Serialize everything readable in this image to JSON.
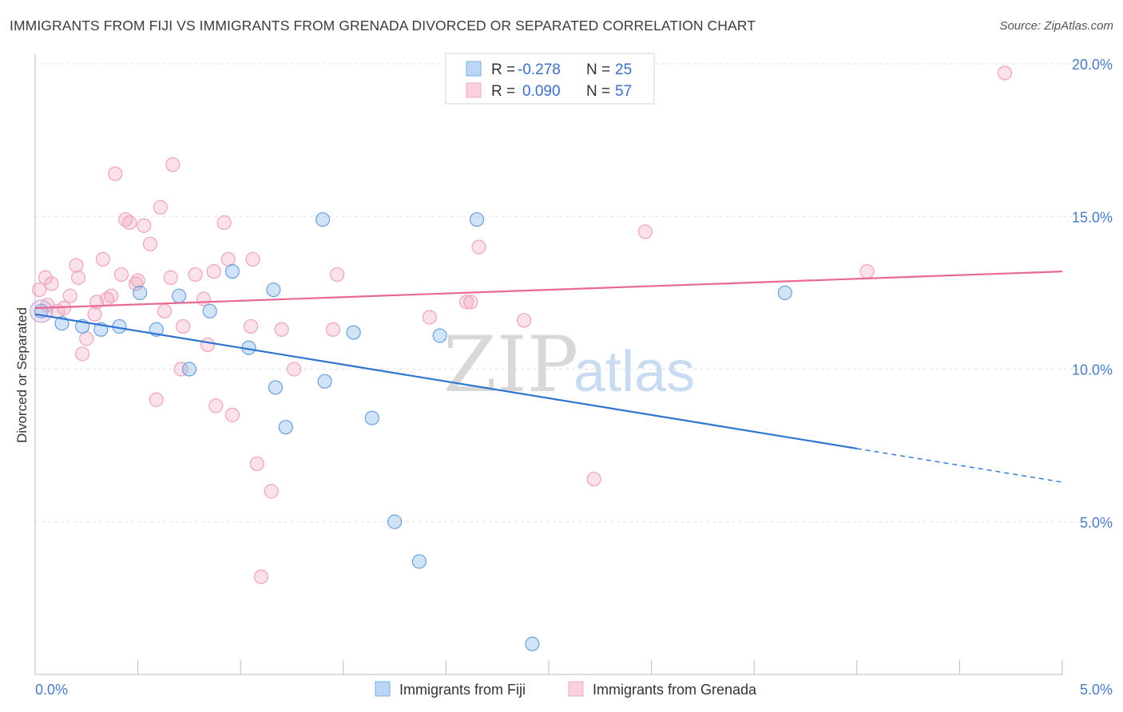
{
  "header": {
    "title": "IMMIGRANTS FROM FIJI VS IMMIGRANTS FROM GRENADA DIVORCED OR SEPARATED CORRELATION CHART",
    "source": "Source: ZipAtlas.com"
  },
  "watermark": {
    "zip": "ZIP",
    "atlas": "atlas"
  },
  "legend": {
    "rows": [
      {
        "r_label": "R =",
        "r_value": "-0.278",
        "n_label": "N =",
        "n_value": "25"
      },
      {
        "r_label": "R =",
        "r_value": "0.090",
        "n_label": "N =",
        "n_value": "57"
      }
    ]
  },
  "chart_data": {
    "type": "scatter",
    "ylabel": "Divorced or Separated",
    "xlim": [
      0,
      5
    ],
    "ylim": [
      0,
      20
    ],
    "x_tick_labels": [
      {
        "value": 0,
        "label": "0.0%"
      },
      {
        "value": 5,
        "label": "5.0%"
      }
    ],
    "y_tick_labels": [
      {
        "value": 5,
        "label": "5.0%"
      },
      {
        "value": 10,
        "label": "10.0%"
      },
      {
        "value": 15,
        "label": "15.0%"
      },
      {
        "value": 20,
        "label": "20.0%"
      }
    ],
    "grid": "horizontal dashed",
    "legend_position": "top-center",
    "series": [
      {
        "name": "Immigrants from Fiji",
        "color": "#7aaee8",
        "line_color": "#2e74d0",
        "trend": {
          "x0": 0.0,
          "y0": 11.8,
          "x1": 4.0,
          "y1": 7.4,
          "dash_to_x": 5.0,
          "dash_to_y": 6.3
        },
        "points": [
          [
            0.03,
            11.9
          ],
          [
            0.13,
            11.5
          ],
          [
            0.23,
            11.4
          ],
          [
            0.32,
            11.3
          ],
          [
            0.41,
            11.4
          ],
          [
            0.51,
            12.5
          ],
          [
            0.59,
            11.3
          ],
          [
            0.7,
            12.4
          ],
          [
            0.75,
            10.0
          ],
          [
            0.85,
            11.9
          ],
          [
            0.96,
            13.2
          ],
          [
            1.04,
            10.7
          ],
          [
            1.16,
            12.6
          ],
          [
            1.17,
            9.4
          ],
          [
            1.22,
            8.1
          ],
          [
            1.4,
            14.9
          ],
          [
            1.41,
            9.6
          ],
          [
            1.55,
            11.2
          ],
          [
            1.64,
            8.4
          ],
          [
            1.75,
            5.0
          ],
          [
            1.87,
            3.7
          ],
          [
            1.97,
            11.1
          ],
          [
            2.15,
            14.9
          ],
          [
            2.42,
            1.0
          ],
          [
            3.65,
            12.5
          ]
        ]
      },
      {
        "name": "Immigrants from Grenada",
        "color": "#f4a9c0",
        "line_color": "#e86a93",
        "trend": {
          "x0": 0.0,
          "y0": 12.0,
          "x1": 5.0,
          "y1": 13.2
        },
        "points": [
          [
            0.02,
            12.6
          ],
          [
            0.05,
            13.0
          ],
          [
            0.06,
            12.1
          ],
          [
            0.08,
            12.8
          ],
          [
            0.11,
            11.9
          ],
          [
            0.14,
            12.0
          ],
          [
            0.17,
            12.4
          ],
          [
            0.2,
            13.4
          ],
          [
            0.21,
            13.0
          ],
          [
            0.23,
            10.5
          ],
          [
            0.25,
            11.0
          ],
          [
            0.29,
            11.8
          ],
          [
            0.3,
            12.2
          ],
          [
            0.33,
            13.6
          ],
          [
            0.35,
            12.3
          ],
          [
            0.37,
            12.4
          ],
          [
            0.39,
            16.4
          ],
          [
            0.42,
            13.1
          ],
          [
            0.44,
            14.9
          ],
          [
            0.46,
            14.8
          ],
          [
            0.49,
            12.8
          ],
          [
            0.5,
            12.9
          ],
          [
            0.53,
            14.7
          ],
          [
            0.56,
            14.1
          ],
          [
            0.59,
            9.0
          ],
          [
            0.61,
            15.3
          ],
          [
            0.63,
            11.9
          ],
          [
            0.66,
            13.0
          ],
          [
            0.67,
            16.7
          ],
          [
            0.71,
            10.0
          ],
          [
            0.72,
            11.4
          ],
          [
            0.78,
            13.1
          ],
          [
            0.82,
            12.3
          ],
          [
            0.84,
            10.8
          ],
          [
            0.87,
            13.2
          ],
          [
            0.88,
            8.8
          ],
          [
            0.92,
            14.8
          ],
          [
            0.94,
            13.6
          ],
          [
            0.96,
            8.5
          ],
          [
            1.05,
            11.4
          ],
          [
            1.06,
            13.6
          ],
          [
            1.08,
            6.9
          ],
          [
            1.1,
            3.2
          ],
          [
            1.15,
            6.0
          ],
          [
            1.2,
            11.3
          ],
          [
            1.26,
            10.0
          ],
          [
            1.45,
            11.3
          ],
          [
            1.47,
            13.1
          ],
          [
            1.92,
            11.7
          ],
          [
            2.1,
            12.2
          ],
          [
            2.12,
            12.2
          ],
          [
            2.16,
            14.0
          ],
          [
            2.38,
            11.6
          ],
          [
            2.72,
            6.4
          ],
          [
            2.97,
            14.5
          ],
          [
            4.05,
            13.2
          ],
          [
            4.72,
            19.7
          ]
        ]
      }
    ]
  }
}
